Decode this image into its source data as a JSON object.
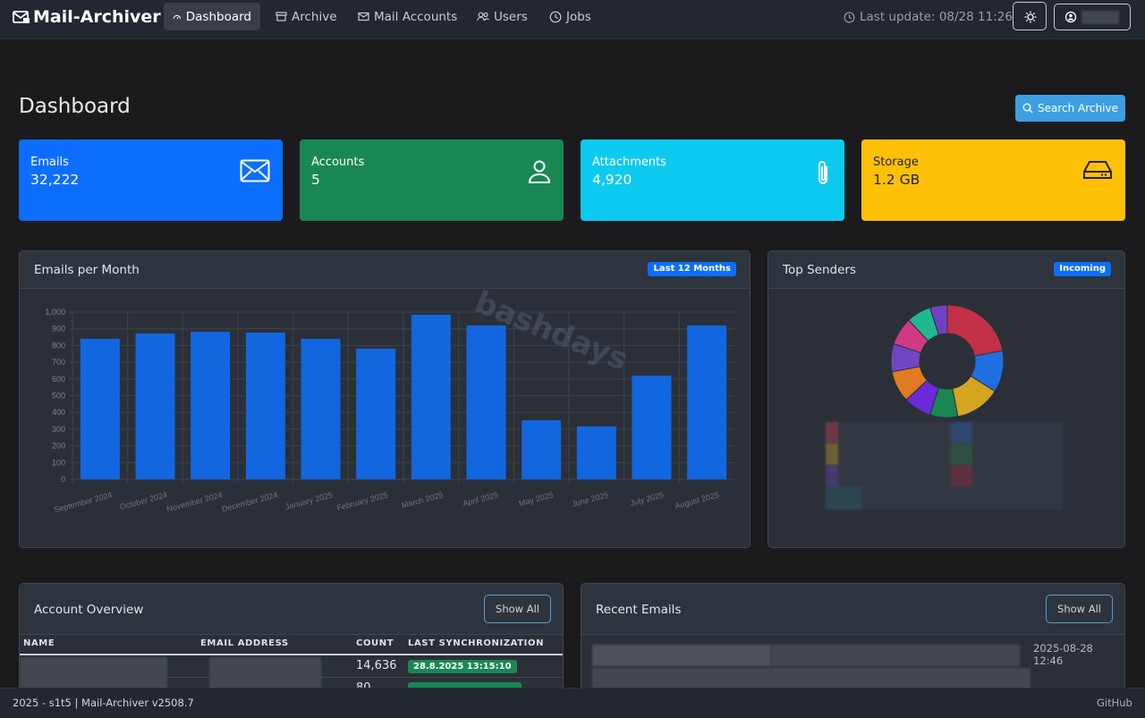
{
  "nav": {
    "brand": "Mail-Archiver",
    "links": [
      "Dashboard",
      "Archive",
      "Mail Accounts",
      "Users",
      "Jobs"
    ],
    "last_update": "Last update: 08/28 11:26"
  },
  "header": {
    "title": "Dashboard",
    "search_button": "Search Archive"
  },
  "stats": [
    {
      "label": "Emails",
      "value": "32,222"
    },
    {
      "label": "Accounts",
      "value": "5"
    },
    {
      "label": "Attachments",
      "value": "4,920"
    },
    {
      "label": "Storage",
      "value": "1.2 GB"
    }
  ],
  "watermark": "bashdays",
  "chart_data": [
    {
      "type": "bar",
      "title": "Emails per Month",
      "badge": "Last 12 Months",
      "categories": [
        "September 2024",
        "October 2024",
        "November 2024",
        "December 2024",
        "January 2025",
        "February 2025",
        "March 2025",
        "April 2025",
        "May 2025",
        "June 2025",
        "July 2025",
        "August 2025"
      ],
      "values": [
        840,
        872,
        882,
        877,
        840,
        781,
        984,
        920,
        353,
        316,
        620,
        920
      ],
      "color": "#1266e0",
      "ylim": [
        0,
        1000
      ],
      "yticks": [
        0,
        100,
        200,
        300,
        400,
        500,
        600,
        700,
        800,
        900,
        {
          "value": 1000,
          "label": "1,000"
        }
      ],
      "grid": true
    },
    {
      "type": "pie",
      "title": "Top Senders",
      "badge": "Incoming",
      "categories": [
        null,
        null,
        null,
        null,
        null,
        null,
        null,
        null,
        null,
        null
      ],
      "values": [
        22,
        12,
        13,
        8,
        8,
        9,
        8,
        8,
        7,
        5
      ],
      "colors": [
        "#c23145",
        "#1f6fe0",
        "#d5a521",
        "#198754",
        "#6a2ad8",
        "#e07b1f",
        "#7045c2",
        "#d13a82",
        "#22b891",
        "#6f42c1"
      ]
    }
  ],
  "accounts": {
    "title": "Account Overview",
    "button": "Show All",
    "columns": [
      "NAME",
      "EMAIL ADDRESS",
      "COUNT",
      "LAST SYNCHRONIZATION"
    ],
    "rows": [
      {
        "count": "14,636",
        "sync": "28.8.2025 13:15:10"
      },
      {
        "count": "80"
      }
    ]
  },
  "recent": {
    "title": "Recent Emails",
    "button": "Show All",
    "rows": [
      {
        "date": "2025-08-28 12:46"
      }
    ]
  },
  "footer": {
    "left": "2025 - s1t5 | Mail-Archiver v2508.7",
    "right": "GitHub"
  }
}
